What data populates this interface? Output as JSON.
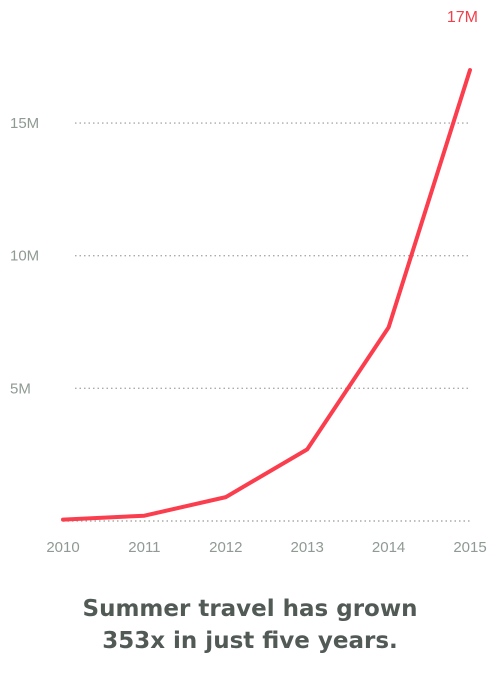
{
  "chart_data": {
    "type": "line",
    "x": [
      "2010",
      "2011",
      "2012",
      "2013",
      "2014",
      "2015"
    ],
    "series": [
      {
        "values": [
          0.05,
          0.2,
          0.9,
          2.7,
          7.3,
          17
        ],
        "color": "#fb3e4e"
      }
    ],
    "yticks": [
      {
        "value": 5,
        "label": "5M"
      },
      {
        "value": 10,
        "label": "10M"
      },
      {
        "value": 15,
        "label": "15M"
      }
    ],
    "ylim": [
      0,
      17.5
    ],
    "grid": "horizontal dotted",
    "end_label": "17M",
    "end_label_color": "#f0404c"
  },
  "caption": {
    "line1": "Summer travel has grown",
    "line2": "353x in just five years."
  }
}
